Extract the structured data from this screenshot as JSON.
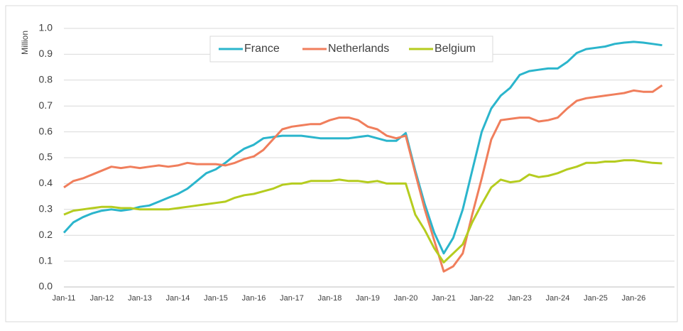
{
  "chart_data": {
    "type": "line",
    "y_label": "Million",
    "categories": [
      "Jan-11",
      null,
      null,
      null,
      "Jan-12",
      null,
      null,
      null,
      "Jan-13",
      null,
      null,
      null,
      "Jan-14",
      null,
      null,
      null,
      "Jan-15",
      null,
      null,
      null,
      "Jan-16",
      null,
      null,
      null,
      "Jan-17",
      null,
      null,
      null,
      "Jan-18",
      null,
      null,
      null,
      "Jan-19",
      null,
      null,
      null,
      "Jan-20",
      null,
      null,
      null,
      "Jan-21",
      null,
      null,
      null,
      "Jan-22",
      null,
      null,
      null,
      "Jan-23",
      null,
      null,
      null,
      "Jan-24",
      null,
      null,
      null,
      "Jan-25",
      null,
      null,
      null,
      "Jan-26",
      null,
      null,
      null
    ],
    "series": [
      {
        "name": "France",
        "color": "#2bb5cc",
        "values": [
          0.21,
          0.25,
          0.27,
          0.285,
          0.295,
          0.3,
          0.295,
          0.3,
          0.31,
          0.315,
          0.33,
          0.345,
          0.36,
          0.38,
          0.41,
          0.44,
          0.455,
          0.48,
          0.51,
          0.535,
          0.55,
          0.575,
          0.58,
          0.585,
          0.585,
          0.585,
          0.58,
          0.575,
          0.575,
          0.575,
          0.575,
          0.58,
          0.585,
          0.575,
          0.565,
          0.565,
          0.595,
          0.45,
          0.32,
          0.21,
          0.13,
          0.19,
          0.3,
          0.45,
          0.6,
          0.69,
          0.74,
          0.77,
          0.82,
          0.835,
          0.84,
          0.845,
          0.845,
          0.87,
          0.905,
          0.92,
          0.925,
          0.93,
          0.94,
          0.945,
          0.948,
          0.945,
          0.94,
          0.935
        ]
      },
      {
        "name": "Netherlands",
        "color": "#f07e5c",
        "values": [
          0.385,
          0.41,
          0.42,
          0.435,
          0.45,
          0.465,
          0.46,
          0.465,
          0.46,
          0.465,
          0.47,
          0.465,
          0.47,
          0.48,
          0.475,
          0.475,
          0.475,
          0.47,
          0.48,
          0.495,
          0.505,
          0.53,
          0.57,
          0.61,
          0.62,
          0.625,
          0.63,
          0.63,
          0.645,
          0.655,
          0.655,
          0.645,
          0.62,
          0.61,
          0.585,
          0.575,
          0.585,
          0.44,
          0.3,
          0.18,
          0.06,
          0.08,
          0.13,
          0.28,
          0.42,
          0.57,
          0.645,
          0.65,
          0.655,
          0.655,
          0.64,
          0.645,
          0.655,
          0.69,
          0.72,
          0.73,
          0.735,
          0.74,
          0.745,
          0.75,
          0.76,
          0.755,
          0.755,
          0.78
        ]
      },
      {
        "name": "Belgium",
        "color": "#b5cc1f",
        "values": [
          0.28,
          0.295,
          0.3,
          0.305,
          0.31,
          0.31,
          0.305,
          0.305,
          0.3,
          0.3,
          0.3,
          0.3,
          0.305,
          0.31,
          0.315,
          0.32,
          0.325,
          0.33,
          0.345,
          0.355,
          0.36,
          0.37,
          0.38,
          0.395,
          0.4,
          0.4,
          0.41,
          0.41,
          0.41,
          0.415,
          0.41,
          0.41,
          0.405,
          0.41,
          0.4,
          0.4,
          0.4,
          0.28,
          0.22,
          0.15,
          0.095,
          0.13,
          0.165,
          0.25,
          0.32,
          0.385,
          0.415,
          0.405,
          0.41,
          0.435,
          0.425,
          0.43,
          0.44,
          0.455,
          0.465,
          0.48,
          0.48,
          0.485,
          0.485,
          0.49,
          0.49,
          0.485,
          0.48,
          0.478
        ]
      }
    ],
    "ylim": [
      0,
      1
    ],
    "yticks": [
      {
        "value": 0,
        "label": "0.0"
      },
      0.1,
      0.2,
      0.3,
      0.4,
      0.5,
      0.6,
      0.7,
      0.8,
      0.9,
      {
        "value": 1,
        "label": "1.0"
      }
    ],
    "grid": true,
    "legend": "top"
  }
}
